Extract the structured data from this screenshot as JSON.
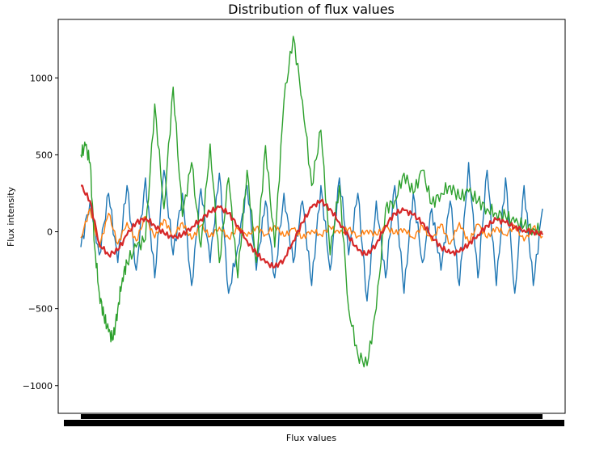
{
  "chart_data": {
    "type": "line",
    "title": "Distribution of flux values",
    "xlabel": "Flux values",
    "ylabel": "Flux intensity",
    "ylim": [
      -1180,
      1380
    ],
    "yticks": [
      1000,
      500,
      0,
      -500,
      -1000
    ],
    "ytick_labels": [
      "1000",
      "500",
      "0",
      "−500",
      "−1000"
    ],
    "xlim": [
      0,
      1
    ],
    "grid": false,
    "series": [
      {
        "color": "#1f77b4",
        "x": [
          0.0,
          0.02,
          0.04,
          0.06,
          0.08,
          0.1,
          0.12,
          0.14,
          0.16,
          0.18,
          0.2,
          0.22,
          0.24,
          0.26,
          0.28,
          0.3,
          0.32,
          0.34,
          0.36,
          0.38,
          0.4,
          0.42,
          0.44,
          0.46,
          0.48,
          0.5,
          0.52,
          0.54,
          0.56,
          0.58,
          0.6,
          0.62,
          0.64,
          0.66,
          0.68,
          0.7,
          0.72,
          0.74,
          0.76,
          0.78,
          0.8,
          0.82,
          0.84,
          0.86,
          0.88,
          0.9,
          0.92,
          0.94,
          0.96,
          0.98,
          1.0
        ],
        "values": [
          -100,
          200,
          -150,
          250,
          -200,
          300,
          -250,
          350,
          -300,
          400,
          -150,
          250,
          -350,
          280,
          -200,
          380,
          -400,
          -100,
          300,
          -250,
          200,
          -300,
          250,
          -200,
          200,
          -350,
          300,
          -250,
          350,
          -150,
          250,
          -450,
          200,
          -300,
          300,
          -400,
          250,
          -200,
          150,
          -250,
          200,
          -350,
          450,
          -300,
          400,
          -350,
          350,
          -400,
          300,
          -350,
          150
        ]
      },
      {
        "color": "#ff7f0e",
        "x": [
          0.0,
          0.02,
          0.04,
          0.06,
          0.08,
          0.1,
          0.12,
          0.14,
          0.16,
          0.18,
          0.2,
          0.22,
          0.24,
          0.26,
          0.28,
          0.3,
          0.32,
          0.34,
          0.36,
          0.38,
          0.4,
          0.42,
          0.44,
          0.46,
          0.48,
          0.5,
          0.52,
          0.54,
          0.56,
          0.58,
          0.6,
          0.62,
          0.64,
          0.66,
          0.68,
          0.7,
          0.72,
          0.74,
          0.76,
          0.78,
          0.8,
          0.82,
          0.84,
          0.86,
          0.88,
          0.9,
          0.92,
          0.94,
          0.96,
          0.98,
          1.0
        ],
        "values": [
          -40,
          150,
          -100,
          120,
          -80,
          60,
          -60,
          100,
          -40,
          80,
          -30,
          60,
          -50,
          40,
          -30,
          30,
          -40,
          20,
          -30,
          30,
          -20,
          40,
          -30,
          20,
          -40,
          10,
          -20,
          30,
          -10,
          20,
          -30,
          10,
          -20,
          30,
          -10,
          20,
          -40,
          40,
          -60,
          50,
          -80,
          60,
          -70,
          50,
          -40,
          30,
          -20,
          40,
          -60,
          30,
          -30
        ]
      },
      {
        "color": "#2ca02c",
        "x": [
          0.0,
          0.01,
          0.02,
          0.03,
          0.04,
          0.05,
          0.06,
          0.07,
          0.08,
          0.09,
          0.1,
          0.12,
          0.14,
          0.16,
          0.18,
          0.2,
          0.22,
          0.24,
          0.26,
          0.28,
          0.3,
          0.32,
          0.34,
          0.36,
          0.38,
          0.4,
          0.42,
          0.44,
          0.46,
          0.48,
          0.5,
          0.52,
          0.54,
          0.56,
          0.58,
          0.6,
          0.62,
          0.64,
          0.66,
          0.68,
          0.7,
          0.72,
          0.74,
          0.76,
          0.78,
          0.8,
          0.82,
          0.84,
          0.86,
          0.88,
          0.9,
          0.92,
          0.94,
          0.96,
          0.98,
          1.0
        ],
        "values": [
          500,
          560,
          450,
          -100,
          -400,
          -550,
          -650,
          -700,
          -500,
          -300,
          -200,
          -100,
          -50,
          830,
          150,
          940,
          100,
          450,
          -100,
          570,
          -200,
          350,
          -300,
          400,
          -200,
          560,
          -100,
          850,
          1270,
          850,
          300,
          660,
          -150,
          300,
          -500,
          -800,
          -870,
          -500,
          150,
          200,
          380,
          250,
          400,
          180,
          250,
          300,
          220,
          260,
          200,
          150,
          120,
          100,
          60,
          40,
          20,
          0
        ]
      },
      {
        "color": "#d62728",
        "x": [
          0.0,
          0.02,
          0.04,
          0.06,
          0.08,
          0.1,
          0.12,
          0.14,
          0.16,
          0.18,
          0.2,
          0.22,
          0.24,
          0.26,
          0.28,
          0.3,
          0.32,
          0.34,
          0.36,
          0.38,
          0.4,
          0.42,
          0.44,
          0.46,
          0.48,
          0.5,
          0.52,
          0.54,
          0.56,
          0.58,
          0.6,
          0.62,
          0.64,
          0.66,
          0.68,
          0.7,
          0.72,
          0.74,
          0.76,
          0.78,
          0.8,
          0.82,
          0.84,
          0.86,
          0.88,
          0.9,
          0.92,
          0.94,
          0.96,
          0.98,
          1.0
        ],
        "values": [
          300,
          200,
          -80,
          -150,
          -120,
          -20,
          60,
          90,
          40,
          -10,
          -40,
          -20,
          30,
          80,
          130,
          160,
          120,
          40,
          -60,
          -140,
          -200,
          -230,
          -180,
          -60,
          60,
          160,
          200,
          150,
          60,
          -30,
          -120,
          -150,
          -80,
          40,
          120,
          140,
          110,
          60,
          -30,
          -100,
          -140,
          -130,
          -80,
          -20,
          40,
          80,
          60,
          30,
          10,
          0,
          -20
        ]
      }
    ]
  }
}
